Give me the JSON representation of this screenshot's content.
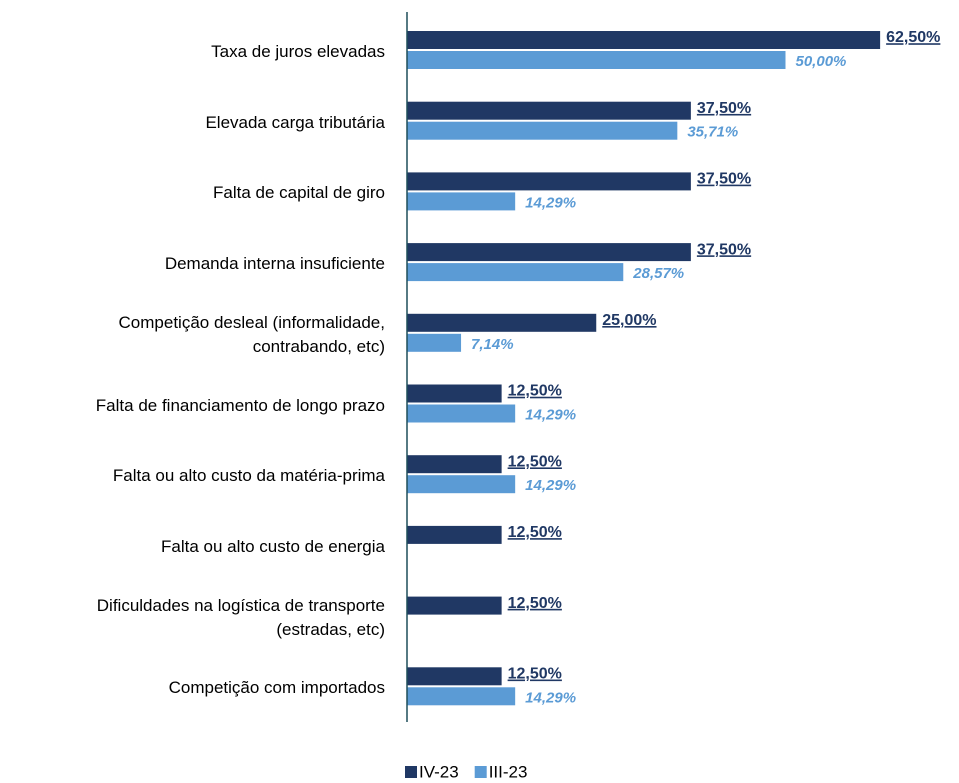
{
  "chart_data": {
    "type": "bar",
    "orientation": "horizontal",
    "categories": [
      "Taxa de juros elevadas",
      "Elevada carga tributária",
      "Falta de capital de giro",
      "Demanda interna insuficiente",
      "Competição desleal (informalidade,\ncontrabando, etc)",
      "Falta de financiamento de longo prazo",
      "Falta ou alto custo da matéria-prima",
      "Falta ou alto custo de energia",
      "Dificuldades na logística de transporte\n(estradas, etc)",
      "Competição com importados"
    ],
    "series": [
      {
        "name": "IV-23",
        "color": "#203864",
        "values": [
          62.5,
          37.5,
          37.5,
          37.5,
          25.0,
          12.5,
          12.5,
          12.5,
          12.5,
          12.5
        ],
        "value_labels": [
          "62,50%",
          "37,50%",
          "37,50%",
          "37,50%",
          "25,00%",
          "12,50%",
          "12,50%",
          "12,50%",
          "12,50%",
          "12,50%"
        ]
      },
      {
        "name": "III-23",
        "color": "#5b9bd5",
        "values": [
          50.0,
          35.71,
          14.29,
          28.57,
          7.14,
          14.29,
          14.29,
          null,
          null,
          14.29
        ],
        "value_labels": [
          "50,00%",
          "35,71%",
          "14,29%",
          "28,57%",
          "7,14%",
          "14,29%",
          "14,29%",
          null,
          null,
          "14,29%"
        ]
      }
    ]
  }
}
